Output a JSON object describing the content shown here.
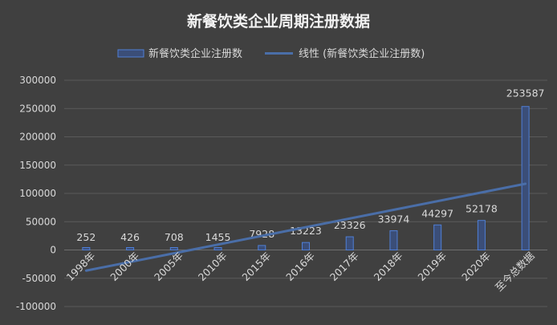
{
  "chart_data": {
    "type": "bar",
    "title": "新餐饮类企业周期注册数据",
    "categories": [
      "1998年",
      "2000年",
      "2005年",
      "2010年",
      "2015年",
      "2016年",
      "2017年",
      "2018年",
      "2019年",
      "2020年",
      "至今总数据"
    ],
    "series": [
      {
        "name": "新餐饮类企业注册数",
        "type": "bar",
        "values": [
          252,
          426,
          708,
          1455,
          7928,
          13223,
          23326,
          33974,
          44297,
          52178,
          253587
        ]
      },
      {
        "name": "线性 (新餐饮类企业注册数)",
        "type": "trendline",
        "start": -36500,
        "end": 117000
      }
    ],
    "ylim": [
      -100000,
      300000
    ],
    "yticks": [
      "-100000",
      "-50000",
      "0",
      "50000",
      "100000",
      "150000",
      "200000",
      "250000",
      "300000"
    ],
    "xlabel": "",
    "ylabel": "",
    "legend_position": "top",
    "grid": true,
    "colors": {
      "background": "#404040",
      "bar_fill": "#3b4e78",
      "bar_stroke": "#4f7fd6",
      "trendline": "#4a6ea8",
      "text": "#d9d9d9",
      "title": "#f2f2f2",
      "grid": "#5a5a5a"
    }
  }
}
